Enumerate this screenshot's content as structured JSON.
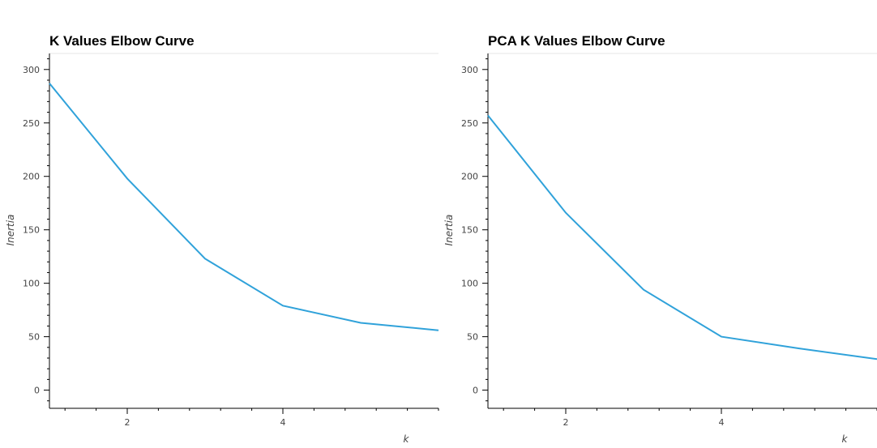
{
  "chart_data": [
    {
      "type": "line",
      "title": "K Values Elbow Curve",
      "xlabel": "k",
      "ylabel": "Inertia",
      "x": [
        1,
        2,
        3,
        4,
        5,
        6
      ],
      "series": [
        {
          "values": [
            287,
            198,
            123,
            79,
            63,
            56
          ],
          "color": "#30a2da"
        }
      ],
      "xlim": [
        1,
        6
      ],
      "ylim": [
        -17,
        315
      ],
      "xticks": [
        2,
        4
      ],
      "yticks": [
        0,
        50,
        100,
        150,
        200,
        250,
        300
      ],
      "grid": false,
      "legend": "none"
    },
    {
      "type": "line",
      "title": "PCA K Values Elbow Curve",
      "xlabel": "k",
      "ylabel": "Inertia",
      "x": [
        1,
        2,
        3,
        4,
        5,
        6
      ],
      "series": [
        {
          "values": [
            257,
            166,
            94,
            50,
            39,
            29
          ],
          "color": "#30a2da"
        }
      ],
      "xlim": [
        1,
        6
      ],
      "ylim": [
        -17,
        315
      ],
      "xticks": [
        2,
        4
      ],
      "yticks": [
        0,
        50,
        100,
        150,
        200,
        250,
        300
      ],
      "grid": false,
      "legend": "none"
    }
  ]
}
